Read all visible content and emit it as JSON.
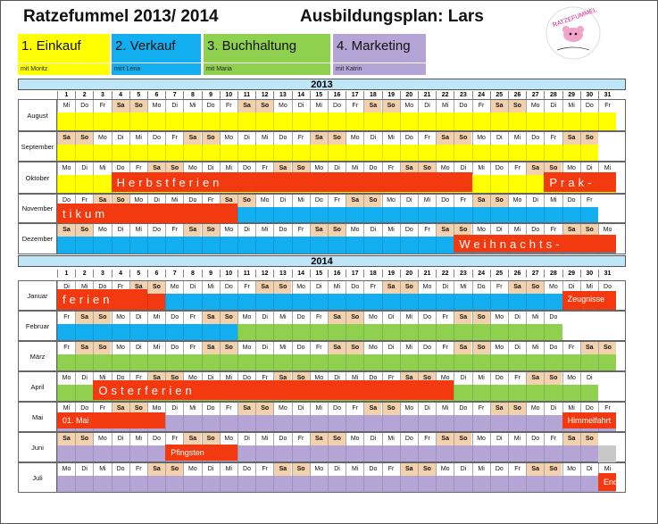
{
  "header": {
    "title": "Ratzefummel 2013/ 2014",
    "subtitle": "Ausbildungsplan: Lars"
  },
  "departments": [
    {
      "label": "1. Einkauf",
      "mentor": "mit Moritz",
      "color": "#ffff00"
    },
    {
      "label": "2. Verkauf",
      "mentor": "mirt Lena",
      "color": "#13aeef"
    },
    {
      "label": "3. Buchhaltung",
      "mentor": "mit Maria",
      "color": "#8fd14f"
    },
    {
      "label": "4. Marketing",
      "mentor": "mit Katrin",
      "color": "#b4a5d6"
    }
  ],
  "years": [
    "2013",
    "2014"
  ],
  "day_numbers": [
    "1",
    "2",
    "3",
    "4",
    "5",
    "6",
    "7",
    "8",
    "9",
    "10",
    "11",
    "12",
    "13",
    "14",
    "15",
    "16",
    "17",
    "18",
    "19",
    "20",
    "21",
    "22",
    "23",
    "24",
    "25",
    "26",
    "27",
    "28",
    "29",
    "30",
    "31"
  ],
  "months_2013": [
    {
      "name": "August",
      "first_weekday": 3,
      "days": 31
    },
    {
      "name": "September",
      "first_weekday": 6,
      "days": 30
    },
    {
      "name": "Oktober",
      "first_weekday": 1,
      "days": 31
    },
    {
      "name": "November",
      "first_weekday": 4,
      "days": 30
    },
    {
      "name": "Dezember",
      "first_weekday": 6,
      "days": 31
    }
  ],
  "months_2014": [
    {
      "name": "Januar",
      "first_weekday": 2,
      "days": 31
    },
    {
      "name": "Februar",
      "first_weekday": 5,
      "days": 28
    },
    {
      "name": "März",
      "first_weekday": 5,
      "days": 31
    },
    {
      "name": "April",
      "first_weekday": 1,
      "days": 30
    },
    {
      "name": "Mai",
      "first_weekday": 3,
      "days": 31
    },
    {
      "name": "Juni",
      "first_weekday": 6,
      "days": 30
    },
    {
      "name": "Juli",
      "first_weekday": 1,
      "days": 31
    }
  ],
  "weekday_abbr": [
    "Mo",
    "Di",
    "Mi",
    "Do",
    "Fr",
    "Sa",
    "So"
  ],
  "labels": {
    "herbst": "Herbstferien",
    "praktikum_a": "Prak-",
    "praktikum_b": "tikum",
    "weihnachts": "Weihnachts-",
    "ferien": "ferien",
    "zeugnisse": "Zeugnisse",
    "oster": "Osterferien",
    "mai": "01. Mai",
    "himmelfahrt": "Himmelfahrt",
    "pfingsten": "Pfingsten",
    "ende": "Ende"
  },
  "colors": {
    "yellow": "#ffff00",
    "blue": "#13aeef",
    "green": "#8fd14f",
    "purple": "#b4a5d6",
    "holiday": "#f3390f",
    "weekend": "#f4d1ad"
  }
}
